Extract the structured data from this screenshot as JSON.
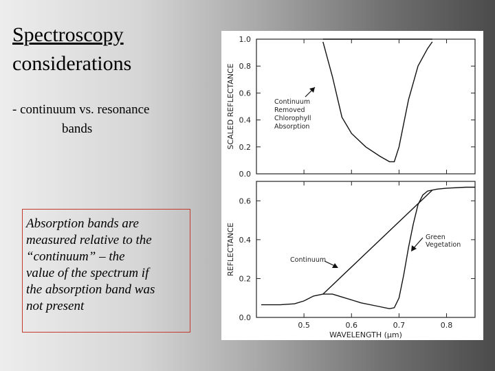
{
  "slide": {
    "title_line1": "Spectroscopy",
    "title_line2": "considerations",
    "bullet_line1": "- continuum vs. resonance",
    "bullet_line2": "bands",
    "note_lines": [
      "Absorption bands are",
      "measured relative to the",
      "“continuum” – the",
      "value of  the spectrum if",
      "the absorption band was",
      "not present"
    ]
  },
  "chart_data": [
    {
      "type": "line",
      "ylabel": "SCALED  REFLECTANCE",
      "xlim": [
        0.4,
        0.86
      ],
      "ylim": [
        0.0,
        1.0
      ],
      "yticks": [
        "0.0",
        "0.2",
        "0.4",
        "0.6",
        "0.8",
        "1.0"
      ],
      "annotation": [
        "Continuum",
        "Removed",
        "Chlorophyll",
        "Absorption"
      ],
      "series": [
        {
          "x": [
            0.54,
            0.77
          ],
          "y": [
            1.0,
            1.0
          ]
        },
        {
          "x": [
            0.54,
            0.56,
            0.58,
            0.6,
            0.63,
            0.66,
            0.68,
            0.69,
            0.7,
            0.72,
            0.74,
            0.76,
            0.77
          ],
          "y": [
            0.98,
            0.72,
            0.42,
            0.3,
            0.2,
            0.13,
            0.09,
            0.09,
            0.2,
            0.55,
            0.8,
            0.93,
            0.98
          ]
        }
      ]
    },
    {
      "type": "line",
      "xlabel": "WAVELENGTH   (µm)",
      "ylabel": "REFLECTANCE",
      "xlim": [
        0.4,
        0.86
      ],
      "ylim": [
        0.0,
        0.7
      ],
      "xticks": [
        "0.5",
        "0.6",
        "0.7",
        "0.8"
      ],
      "yticks": [
        "0.0",
        "0.2",
        "0.4",
        "0.6"
      ],
      "annotations": [
        {
          "lines": [
            "Continuum"
          ]
        },
        {
          "lines": [
            "Green",
            "Vegetation"
          ]
        }
      ],
      "series": [
        {
          "name": "Green Vegetation",
          "x": [
            0.41,
            0.45,
            0.48,
            0.5,
            0.52,
            0.54,
            0.56,
            0.58,
            0.6,
            0.62,
            0.65,
            0.68,
            0.69,
            0.7,
            0.71,
            0.72,
            0.73,
            0.74,
            0.75,
            0.76,
            0.78,
            0.8,
            0.84,
            0.86
          ],
          "y": [
            0.065,
            0.065,
            0.07,
            0.085,
            0.11,
            0.12,
            0.12,
            0.105,
            0.09,
            0.075,
            0.06,
            0.045,
            0.05,
            0.1,
            0.22,
            0.36,
            0.48,
            0.58,
            0.63,
            0.65,
            0.66,
            0.665,
            0.67,
            0.67
          ]
        },
        {
          "name": "Continuum",
          "x": [
            0.54,
            0.77
          ],
          "y": [
            0.12,
            0.655
          ]
        }
      ]
    }
  ]
}
